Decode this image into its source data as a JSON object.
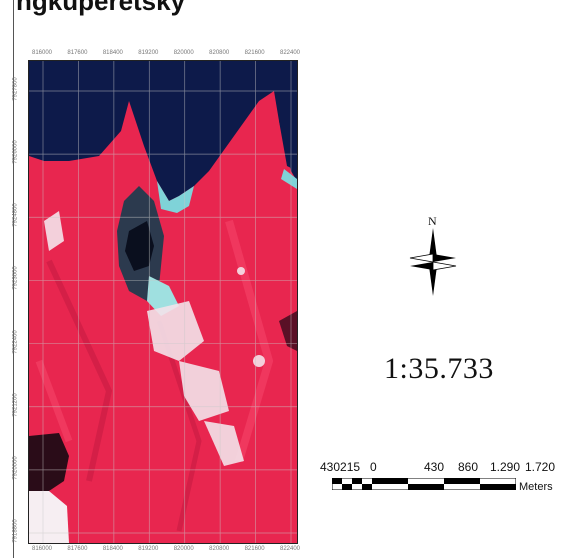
{
  "caption": "ngkuperetsky",
  "north_label": "N",
  "scale_ratio": "1:35.733",
  "scalebar": {
    "labels": [
      "430215",
      "0",
      "430",
      "860",
      "1.290",
      "1.720"
    ],
    "unit": "Meters"
  },
  "graticule": {
    "top_labels": [
      "816000",
      "817600",
      "818400",
      "819200",
      "820000",
      "820800",
      "821600",
      "822400"
    ],
    "bottom_labels": [
      "816000",
      "817600",
      "818400",
      "819200",
      "820000",
      "820800",
      "821600",
      "822400"
    ],
    "left_labels": [
      "7927800",
      "7926000",
      "7924800",
      "7923600",
      "7922400",
      "7921200",
      "7920000",
      "7918800"
    ]
  },
  "colors": {
    "land": "#e8264f",
    "sea": "#0d1a4a",
    "shallow": "#7fd3d8",
    "urban": "#f4e3ea",
    "dark_patch": "#2a0c18"
  }
}
